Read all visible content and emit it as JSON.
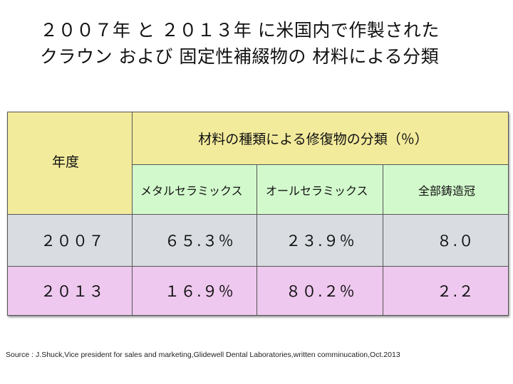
{
  "title": {
    "line1": "２００７年 と ２０１３年 に米国内で作製された",
    "line2": "クラウン および 固定性補綴物の 材料による分類"
  },
  "table": {
    "header_year": "年度",
    "header_group": "材料の種類による修復物の分類（％）",
    "columns": [
      "メタルセラミックス",
      "オールセラミックス",
      "全部鋳造冠"
    ],
    "rows": [
      {
        "year": "２００７",
        "values": [
          "６５.３％",
          "２３.９％",
          "８.０"
        ]
      },
      {
        "year": "２０１３",
        "values": [
          "１６.９％",
          "８０.２％",
          "２.２"
        ]
      }
    ]
  },
  "source": "Source : J.Shuck,Vice president for sales and marketing,Glidewell Dental Laboratories,written comminucation,Oct.2013",
  "colors": {
    "header_yellow": "#f3eb9c",
    "subheader_green": "#d2f9cc",
    "row_2007_gray": "#d9dde2",
    "row_2013_pink": "#eec8ee"
  }
}
